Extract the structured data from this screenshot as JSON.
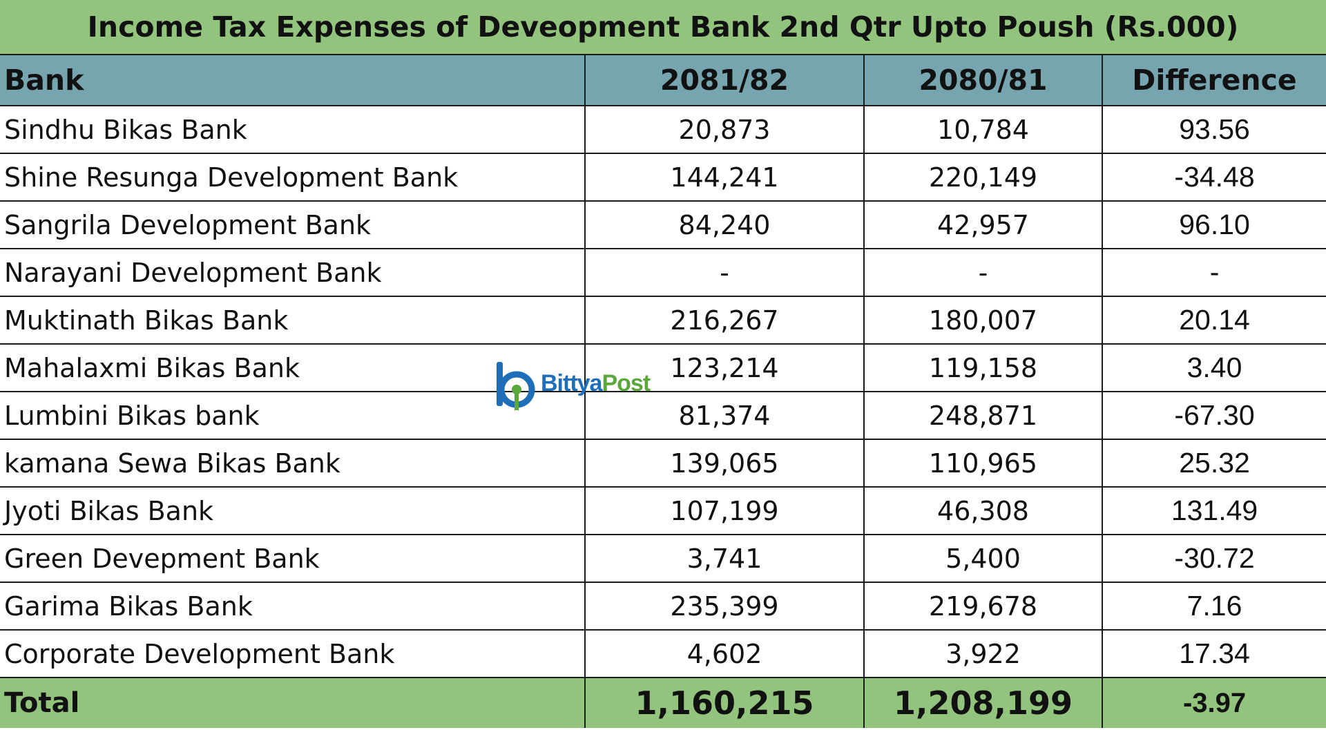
{
  "title": "Income Tax Expenses of Deveopment Bank 2nd Qtr  Upto Poush  (Rs.000)",
  "columns": {
    "bank": "Bank",
    "y1": "2081/82",
    "y2": "2080/81",
    "diff": "Difference"
  },
  "rows": [
    {
      "bank": "Sindhu Bikas Bank",
      "y1": "20,873",
      "y2": "10,784",
      "diff": "93.56"
    },
    {
      "bank": "Shine Resunga Development Bank",
      "y1": "144,241",
      "y2": "220,149",
      "diff": "-34.48"
    },
    {
      "bank": "Sangrila Development Bank",
      "y1": "84,240",
      "y2": "42,957",
      "diff": "96.10"
    },
    {
      "bank": "Narayani Development Bank",
      "y1": "-",
      "y2": "-",
      "diff": "-"
    },
    {
      "bank": "Muktinath Bikas Bank",
      "y1": "216,267",
      "y2": "180,007",
      "diff": "20.14"
    },
    {
      "bank": "Mahalaxmi Bikas Bank",
      "y1": "123,214",
      "y2": "119,158",
      "diff": "3.40"
    },
    {
      "bank": "Lumbini Bikas bank",
      "y1": "81,374",
      "y2": "248,871",
      "diff": "-67.30"
    },
    {
      "bank": "kamana Sewa Bikas Bank",
      "y1": "139,065",
      "y2": "110,965",
      "diff": "25.32"
    },
    {
      "bank": "Jyoti Bikas Bank",
      "y1": "107,199",
      "y2": "46,308",
      "diff": "131.49"
    },
    {
      "bank": "Green Devepment Bank",
      "y1": "3,741",
      "y2": "5,400",
      "diff": "-30.72"
    },
    {
      "bank": "Garima Bikas Bank",
      "y1": "235,399",
      "y2": "219,678",
      "diff": "7.16"
    },
    {
      "bank": "Corporate Development Bank",
      "y1": "4,602",
      "y2": "3,922",
      "diff": "17.34"
    }
  ],
  "total": {
    "bank": "Total",
    "y1": "1,160,215",
    "y2": "1,208,199",
    "diff": "-3.97"
  },
  "watermark": {
    "part1": "Bittya",
    "part2": "Post",
    "logo_icon": "bittyapost-logo-icon"
  },
  "colors": {
    "title_bg": "#92c47d",
    "header_bg": "#76a5af",
    "total_bg": "#92c47d",
    "brand_blue": "#1f6fb8",
    "brand_green": "#5aa83c"
  }
}
